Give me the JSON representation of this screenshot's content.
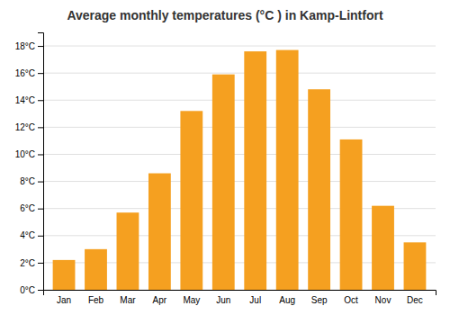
{
  "chart_data": {
    "type": "bar",
    "title": "Average monthly temperatures (°C ) in Kamp-Lintfort",
    "categories": [
      "Jan",
      "Feb",
      "Mar",
      "Apr",
      "May",
      "Jun",
      "Jul",
      "Aug",
      "Sep",
      "Oct",
      "Nov",
      "Dec"
    ],
    "values": [
      2.2,
      3.0,
      5.7,
      8.6,
      13.2,
      15.9,
      17.6,
      17.7,
      14.8,
      11.1,
      6.2,
      3.5
    ],
    "color": "#F5A020",
    "ylim": [
      0,
      19
    ],
    "yticks": [
      {
        "value": 0,
        "label": "0°C"
      },
      {
        "value": 2,
        "label": "2°C"
      },
      {
        "value": 4,
        "label": "4°C"
      },
      {
        "value": 6,
        "label": "6°C"
      },
      {
        "value": 8,
        "label": "8°C"
      },
      {
        "value": 10,
        "label": "10°C"
      },
      {
        "value": 12,
        "label": "12°C"
      },
      {
        "value": 14,
        "label": "14°C"
      },
      {
        "value": 16,
        "label": "16°C"
      },
      {
        "value": 18,
        "label": "18°C"
      }
    ],
    "grid": true
  }
}
